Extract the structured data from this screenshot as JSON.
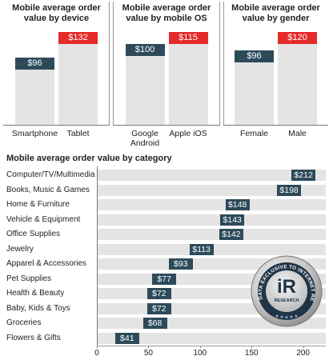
{
  "chart_data": [
    {
      "type": "bar",
      "title": "Mobile average order value by device",
      "categories": [
        "Smartphone",
        "Tablet"
      ],
      "values": [
        96,
        132
      ],
      "value_labels": [
        "$96",
        "$132"
      ],
      "colors": [
        "#2d4a5a",
        "#e52a2a"
      ]
    },
    {
      "type": "bar",
      "title": "Mobile average order value by mobile OS",
      "categories": [
        "Google Android",
        "Apple iOS"
      ],
      "values": [
        100,
        115
      ],
      "value_labels": [
        "$100",
        "$115"
      ],
      "colors": [
        "#2d4a5a",
        "#e52a2a"
      ]
    },
    {
      "type": "bar",
      "title": "Mobile average order value by gender",
      "categories": [
        "Female",
        "Male"
      ],
      "values": [
        96,
        120
      ],
      "value_labels": [
        "$96",
        "$120"
      ],
      "colors": [
        "#2d4a5a",
        "#e52a2a"
      ]
    },
    {
      "type": "hbar",
      "title": "Mobile average order value by category",
      "categories": [
        "Computer/TV/Multimedia",
        "Books, Music & Games",
        "Home & Furniture",
        "Vehicle & Equipment",
        "Office Supplies",
        "Jewelry",
        "Apparel & Accessories",
        "Pet Supplies",
        "Health & Beauty",
        "Baby, Kids & Toys",
        "Groceries",
        "Flowers & Gifts"
      ],
      "values": [
        212,
        198,
        148,
        143,
        142,
        113,
        93,
        77,
        72,
        72,
        68,
        41
      ],
      "value_labels": [
        "$212",
        "$198",
        "$148",
        "$143",
        "$142",
        "$113",
        "$93",
        "$77",
        "$72",
        "$72",
        "$68",
        "$41"
      ],
      "color": "#2d4a5a",
      "xlim": [
        0,
        222
      ],
      "xticks": [
        0,
        50,
        100,
        150,
        200
      ]
    }
  ],
  "badge": {
    "ring_text": "DATA EXCLUSIVE TO INTERNET RETAILER",
    "logo": "iR",
    "subtext": "RESEARCH"
  }
}
